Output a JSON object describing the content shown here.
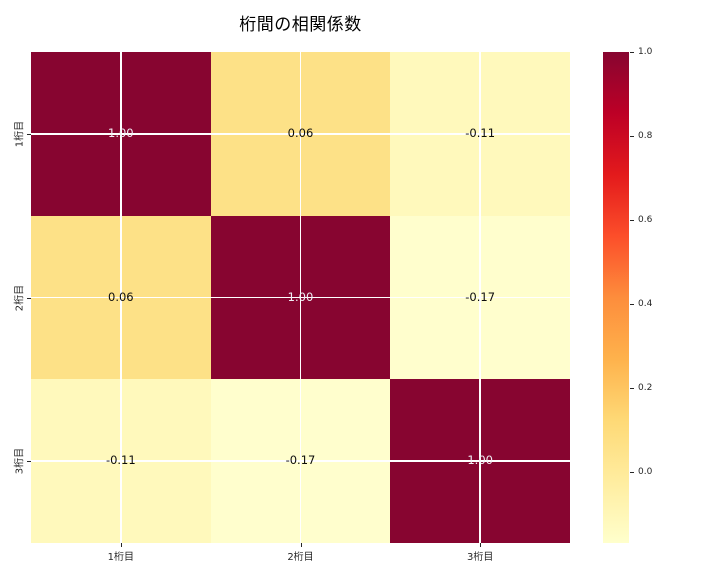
{
  "chart_data": {
    "type": "heatmap",
    "title": "桁間の相関係数",
    "x_categories": [
      "1桁目",
      "2桁目",
      "3桁目"
    ],
    "y_categories": [
      "1桁目",
      "2桁目",
      "3桁目"
    ],
    "matrix": [
      [
        1.0,
        0.06,
        -0.11
      ],
      [
        0.06,
        1.0,
        -0.17
      ],
      [
        -0.11,
        -0.17,
        1.0
      ]
    ],
    "cell_labels": [
      [
        "1.00",
        "0.06",
        "-0.11"
      ],
      [
        "0.06",
        "1.00",
        "-0.17"
      ],
      [
        "-0.11",
        "-0.17",
        "1.00"
      ]
    ],
    "cell_colors": [
      [
        "#870530",
        "#FDE187",
        "#FFF9BC"
      ],
      [
        "#FDE187",
        "#870530",
        "#FFFECD"
      ],
      [
        "#FFF9BC",
        "#FFFECD",
        "#870530"
      ]
    ],
    "annotation_color_dark_cells": "#f0eef4",
    "annotation_color_light_cells": "#0d0d0d",
    "annotation_light_threshold": 0.5,
    "grid": true,
    "grid_color": "#ffffff",
    "vmin": -0.17,
    "vmax": 1.0,
    "colormap": {
      "name": "YlOrRd",
      "stops": [
        {
          "fraction": 0.0,
          "color": "#FFFFCC"
        },
        {
          "fraction": 0.125,
          "color": "#FFEDA0"
        },
        {
          "fraction": 0.25,
          "color": "#FED976"
        },
        {
          "fraction": 0.375,
          "color": "#FEB24C"
        },
        {
          "fraction": 0.5,
          "color": "#FD8D3C"
        },
        {
          "fraction": 0.625,
          "color": "#FC4E2A"
        },
        {
          "fraction": 0.75,
          "color": "#E31A1C"
        },
        {
          "fraction": 0.875,
          "color": "#BD0026"
        },
        {
          "fraction": 1.0,
          "color": "#870530"
        }
      ]
    },
    "colorbar": {
      "position": "right",
      "ticks": [
        {
          "value": 1.0,
          "label": "1.0"
        },
        {
          "value": 0.8,
          "label": "0.8"
        },
        {
          "value": 0.6,
          "label": "0.6"
        },
        {
          "value": 0.4,
          "label": "0.4"
        },
        {
          "value": 0.2,
          "label": "0.2"
        },
        {
          "value": 0.0,
          "label": "0.0"
        }
      ]
    }
  }
}
